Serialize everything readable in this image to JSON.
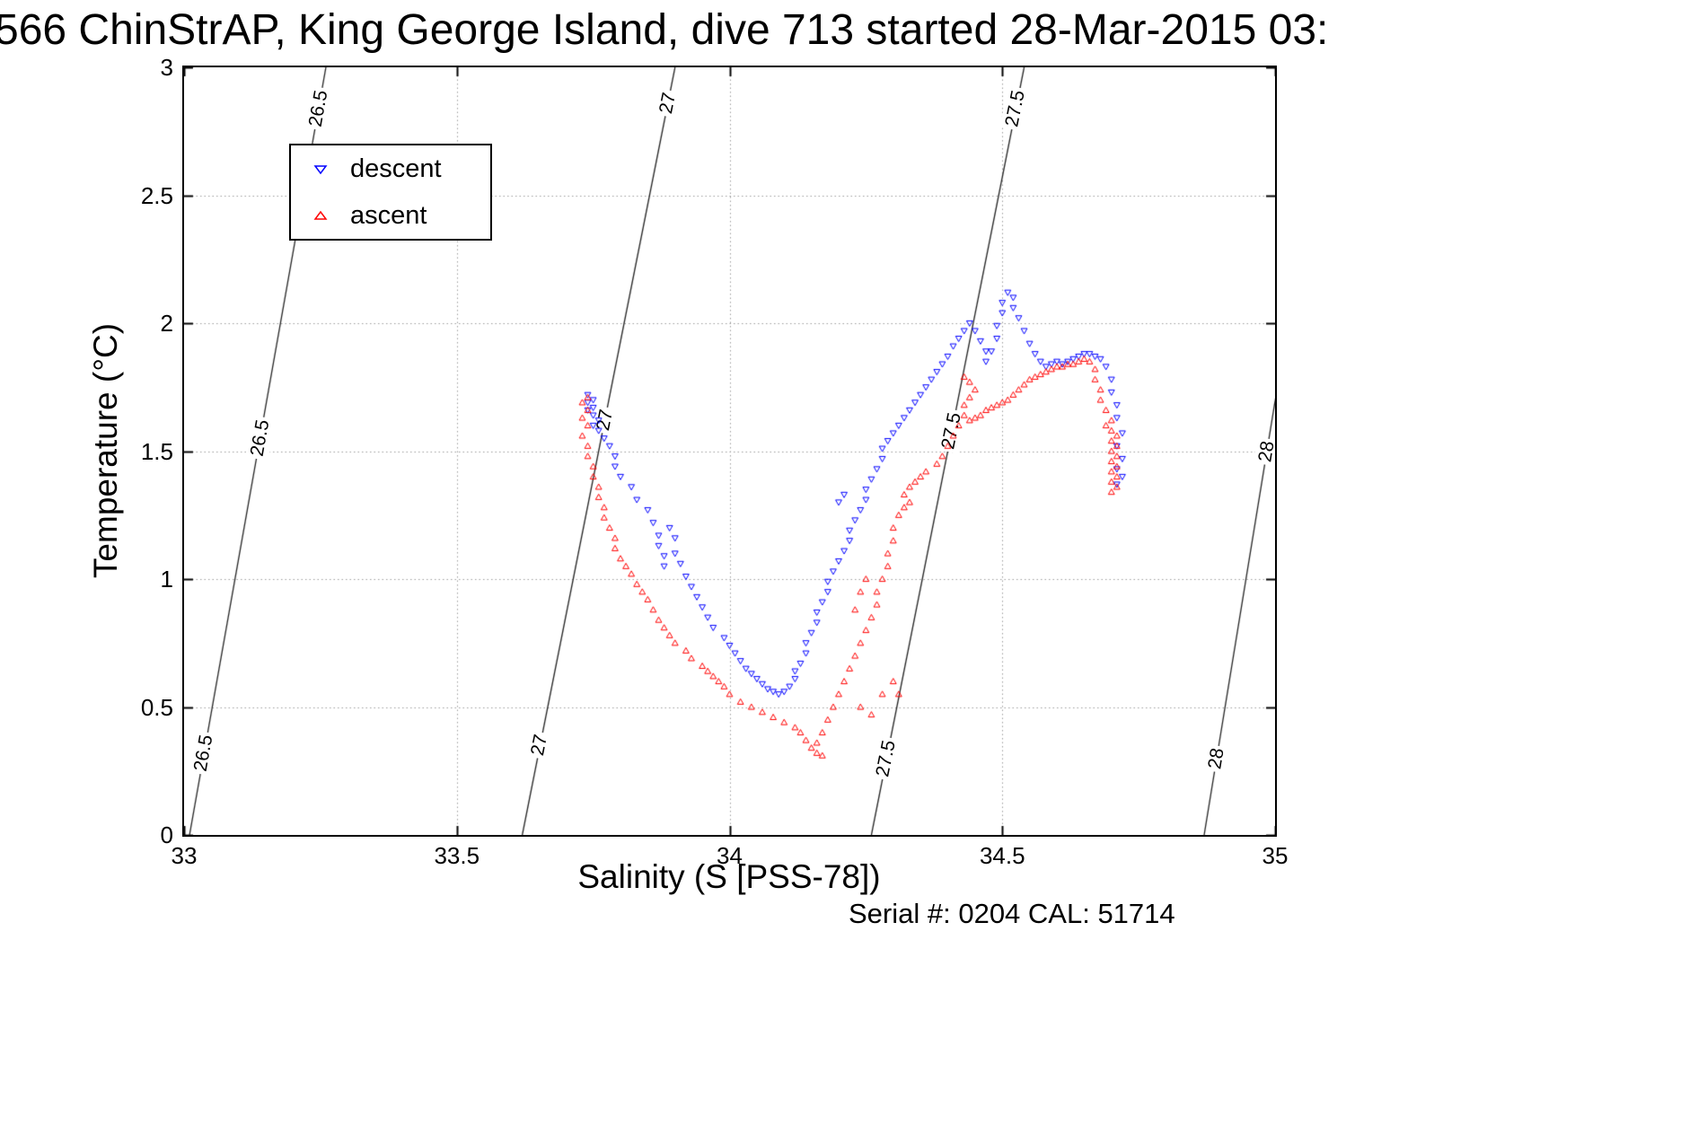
{
  "title": "566 ChinStrAP, King George Island, dive 713 started 28-Mar-2015 03:",
  "footer": {
    "serial_text": "Serial #: 0204  CAL: 51714"
  },
  "chart_data": {
    "type": "scatter",
    "title": "566 ChinStrAP, King George Island, dive 713 started 28-Mar-2015 03:",
    "xlabel": "Salinity (S [PSS-78])",
    "ylabel": "Temperature (°C)",
    "xlim": [
      33,
      35
    ],
    "ylim": [
      0,
      3
    ],
    "x_ticks": [
      33,
      33.5,
      34,
      34.5,
      35
    ],
    "x_tick_labels": [
      "33",
      "33.5",
      "34",
      "34.5",
      "35"
    ],
    "y_ticks": [
      0,
      0.5,
      1,
      1.5,
      2,
      2.5,
      3
    ],
    "y_tick_labels": [
      "0",
      "0.5",
      "1",
      "1.5",
      "2",
      "2.5",
      "3"
    ],
    "grid": true,
    "grid_style": "dotted",
    "legend": {
      "position": "upper-left-inside",
      "entries": [
        {
          "label": "descent",
          "color": "#0000ff",
          "marker": "triangle-down"
        },
        {
          "label": "ascent",
          "color": "#ff0000",
          "marker": "triangle-up"
        }
      ]
    },
    "isopycnals": [
      {
        "label": "26.5",
        "s_at_t0": 33.01,
        "s_at_t3": 33.26,
        "label_t": [
          0.32,
          1.55,
          2.84
        ]
      },
      {
        "label": "27",
        "s_at_t0": 33.62,
        "s_at_t3": 33.9,
        "label_t": [
          0.35,
          1.62,
          2.86
        ]
      },
      {
        "label": "27.5",
        "s_at_t0": 34.26,
        "s_at_t3": 34.54,
        "label_t": [
          0.3,
          1.58,
          2.84
        ]
      },
      {
        "label": "28",
        "s_at_t0": 34.87,
        "s_at_t3": 35.1,
        "label_t": [
          0.3,
          1.5
        ]
      }
    ],
    "series": [
      {
        "name": "descent",
        "marker": "triangle-down",
        "color": "#0000ff",
        "points": [
          [
            33.74,
            1.72
          ],
          [
            33.75,
            1.7
          ],
          [
            33.74,
            1.69
          ],
          [
            33.75,
            1.67
          ],
          [
            33.74,
            1.66
          ],
          [
            33.75,
            1.64
          ],
          [
            33.76,
            1.62
          ],
          [
            33.75,
            1.6
          ],
          [
            33.76,
            1.58
          ],
          [
            33.77,
            1.55
          ],
          [
            33.78,
            1.52
          ],
          [
            33.79,
            1.48
          ],
          [
            33.79,
            1.44
          ],
          [
            33.8,
            1.4
          ],
          [
            33.82,
            1.36
          ],
          [
            33.83,
            1.31
          ],
          [
            33.85,
            1.27
          ],
          [
            33.86,
            1.22
          ],
          [
            33.87,
            1.17
          ],
          [
            33.87,
            1.13
          ],
          [
            33.88,
            1.09
          ],
          [
            33.89,
            1.2
          ],
          [
            33.9,
            1.16
          ],
          [
            33.88,
            1.05
          ],
          [
            33.9,
            1.1
          ],
          [
            33.91,
            1.06
          ],
          [
            33.92,
            1.01
          ],
          [
            33.93,
            0.97
          ],
          [
            33.94,
            0.93
          ],
          [
            33.95,
            0.89
          ],
          [
            33.96,
            0.85
          ],
          [
            33.97,
            0.81
          ],
          [
            33.99,
            0.77
          ],
          [
            34.0,
            0.74
          ],
          [
            34.01,
            0.71
          ],
          [
            34.02,
            0.68
          ],
          [
            34.03,
            0.65
          ],
          [
            34.04,
            0.63
          ],
          [
            34.05,
            0.61
          ],
          [
            34.06,
            0.59
          ],
          [
            34.07,
            0.57
          ],
          [
            34.08,
            0.56
          ],
          [
            34.09,
            0.55
          ],
          [
            34.1,
            0.56
          ],
          [
            34.11,
            0.58
          ],
          [
            34.12,
            0.61
          ],
          [
            34.12,
            0.64
          ],
          [
            34.13,
            0.67
          ],
          [
            34.14,
            0.71
          ],
          [
            34.14,
            0.75
          ],
          [
            34.15,
            0.79
          ],
          [
            34.16,
            0.83
          ],
          [
            34.16,
            0.87
          ],
          [
            34.17,
            0.91
          ],
          [
            34.18,
            0.95
          ],
          [
            34.18,
            0.99
          ],
          [
            34.19,
            1.03
          ],
          [
            34.2,
            1.07
          ],
          [
            34.2,
            1.3
          ],
          [
            34.21,
            1.11
          ],
          [
            34.21,
            1.33
          ],
          [
            34.22,
            1.15
          ],
          [
            34.22,
            1.19
          ],
          [
            34.23,
            1.23
          ],
          [
            34.24,
            1.27
          ],
          [
            34.25,
            1.31
          ],
          [
            34.25,
            1.35
          ],
          [
            34.26,
            1.39
          ],
          [
            34.27,
            1.43
          ],
          [
            34.28,
            1.47
          ],
          [
            34.28,
            1.51
          ],
          [
            34.29,
            1.54
          ],
          [
            34.3,
            1.57
          ],
          [
            34.31,
            1.6
          ],
          [
            34.32,
            1.63
          ],
          [
            34.33,
            1.66
          ],
          [
            34.34,
            1.69
          ],
          [
            34.35,
            1.72
          ],
          [
            34.36,
            1.75
          ],
          [
            34.37,
            1.78
          ],
          [
            34.38,
            1.81
          ],
          [
            34.39,
            1.84
          ],
          [
            34.4,
            1.87
          ],
          [
            34.41,
            1.91
          ],
          [
            34.42,
            1.94
          ],
          [
            34.43,
            1.97
          ],
          [
            34.44,
            2.0
          ],
          [
            34.45,
            1.97
          ],
          [
            34.46,
            1.93
          ],
          [
            34.47,
            1.89
          ],
          [
            34.47,
            1.85
          ],
          [
            34.48,
            1.89
          ],
          [
            34.49,
            1.94
          ],
          [
            34.49,
            1.99
          ],
          [
            34.5,
            2.04
          ],
          [
            34.5,
            2.08
          ],
          [
            34.51,
            2.12
          ],
          [
            34.52,
            2.1
          ],
          [
            34.52,
            2.06
          ],
          [
            34.53,
            2.02
          ],
          [
            34.54,
            1.97
          ],
          [
            34.55,
            1.92
          ],
          [
            34.56,
            1.88
          ],
          [
            34.57,
            1.85
          ],
          [
            34.58,
            1.83
          ],
          [
            34.59,
            1.84
          ],
          [
            34.6,
            1.85
          ],
          [
            34.61,
            1.84
          ],
          [
            34.62,
            1.85
          ],
          [
            34.63,
            1.86
          ],
          [
            34.64,
            1.87
          ],
          [
            34.65,
            1.88
          ],
          [
            34.66,
            1.88
          ],
          [
            34.67,
            1.87
          ],
          [
            34.68,
            1.86
          ],
          [
            34.69,
            1.83
          ],
          [
            34.7,
            1.78
          ],
          [
            34.7,
            1.73
          ],
          [
            34.71,
            1.68
          ],
          [
            34.71,
            1.63
          ],
          [
            34.72,
            1.57
          ],
          [
            34.71,
            1.52
          ],
          [
            34.72,
            1.47
          ],
          [
            34.71,
            1.43
          ],
          [
            34.72,
            1.4
          ],
          [
            34.71,
            1.37
          ]
        ]
      },
      {
        "name": "ascent",
        "marker": "triangle-up",
        "color": "#ff0000",
        "points": [
          [
            34.7,
            1.34
          ],
          [
            34.71,
            1.36
          ],
          [
            34.7,
            1.38
          ],
          [
            34.71,
            1.4
          ],
          [
            34.7,
            1.42
          ],
          [
            34.71,
            1.44
          ],
          [
            34.7,
            1.46
          ],
          [
            34.71,
            1.48
          ],
          [
            34.7,
            1.5
          ],
          [
            34.71,
            1.52
          ],
          [
            34.7,
            1.54
          ],
          [
            34.71,
            1.56
          ],
          [
            34.7,
            1.58
          ],
          [
            34.69,
            1.6
          ],
          [
            34.7,
            1.62
          ],
          [
            34.69,
            1.66
          ],
          [
            34.68,
            1.7
          ],
          [
            34.68,
            1.74
          ],
          [
            34.67,
            1.78
          ],
          [
            34.67,
            1.82
          ],
          [
            34.66,
            1.85
          ],
          [
            34.65,
            1.86
          ],
          [
            34.64,
            1.85
          ],
          [
            34.63,
            1.84
          ],
          [
            34.62,
            1.84
          ],
          [
            34.61,
            1.83
          ],
          [
            34.6,
            1.83
          ],
          [
            34.59,
            1.82
          ],
          [
            34.58,
            1.81
          ],
          [
            34.57,
            1.8
          ],
          [
            34.56,
            1.79
          ],
          [
            34.55,
            1.78
          ],
          [
            34.54,
            1.76
          ],
          [
            34.53,
            1.74
          ],
          [
            34.52,
            1.72
          ],
          [
            34.51,
            1.7
          ],
          [
            34.5,
            1.69
          ],
          [
            34.49,
            1.68
          ],
          [
            34.48,
            1.67
          ],
          [
            34.47,
            1.66
          ],
          [
            34.46,
            1.64
          ],
          [
            34.45,
            1.63
          ],
          [
            34.44,
            1.62
          ],
          [
            34.43,
            1.64
          ],
          [
            34.43,
            1.68
          ],
          [
            34.44,
            1.71
          ],
          [
            34.45,
            1.74
          ],
          [
            34.44,
            1.77
          ],
          [
            34.43,
            1.79
          ],
          [
            34.42,
            1.6
          ],
          [
            34.41,
            1.56
          ],
          [
            34.4,
            1.52
          ],
          [
            34.39,
            1.48
          ],
          [
            34.38,
            1.45
          ],
          [
            34.36,
            1.42
          ],
          [
            34.35,
            1.4
          ],
          [
            34.34,
            1.38
          ],
          [
            34.33,
            1.36
          ],
          [
            34.32,
            1.33
          ],
          [
            34.33,
            1.3
          ],
          [
            34.32,
            1.28
          ],
          [
            34.31,
            1.25
          ],
          [
            34.3,
            1.2
          ],
          [
            34.3,
            1.15
          ],
          [
            34.29,
            1.1
          ],
          [
            34.29,
            1.05
          ],
          [
            34.28,
            1.0
          ],
          [
            34.27,
            0.95
          ],
          [
            34.24,
            0.95
          ],
          [
            34.25,
            1.0
          ],
          [
            34.23,
            0.88
          ],
          [
            34.27,
            0.9
          ],
          [
            34.26,
            0.85
          ],
          [
            34.25,
            0.8
          ],
          [
            34.24,
            0.75
          ],
          [
            34.23,
            0.7
          ],
          [
            34.22,
            0.65
          ],
          [
            34.21,
            0.6
          ],
          [
            34.2,
            0.55
          ],
          [
            34.19,
            0.5
          ],
          [
            34.18,
            0.45
          ],
          [
            34.17,
            0.4
          ],
          [
            34.16,
            0.36
          ],
          [
            34.16,
            0.32
          ],
          [
            34.17,
            0.31
          ],
          [
            34.24,
            0.5
          ],
          [
            34.26,
            0.47
          ],
          [
            34.28,
            0.55
          ],
          [
            34.3,
            0.6
          ],
          [
            34.31,
            0.55
          ],
          [
            34.15,
            0.34
          ],
          [
            34.14,
            0.37
          ],
          [
            34.13,
            0.4
          ],
          [
            34.12,
            0.42
          ],
          [
            34.1,
            0.44
          ],
          [
            34.08,
            0.46
          ],
          [
            34.06,
            0.48
          ],
          [
            34.04,
            0.5
          ],
          [
            34.02,
            0.52
          ],
          [
            34.0,
            0.55
          ],
          [
            33.99,
            0.58
          ],
          [
            33.98,
            0.6
          ],
          [
            33.97,
            0.62
          ],
          [
            33.96,
            0.64
          ],
          [
            33.95,
            0.66
          ],
          [
            33.93,
            0.69
          ],
          [
            33.92,
            0.72
          ],
          [
            33.9,
            0.75
          ],
          [
            33.89,
            0.78
          ],
          [
            33.88,
            0.81
          ],
          [
            33.87,
            0.84
          ],
          [
            33.86,
            0.88
          ],
          [
            33.85,
            0.92
          ],
          [
            33.84,
            0.95
          ],
          [
            33.83,
            0.98
          ],
          [
            33.82,
            1.02
          ],
          [
            33.81,
            1.05
          ],
          [
            33.8,
            1.08
          ],
          [
            33.79,
            1.12
          ],
          [
            33.79,
            1.16
          ],
          [
            33.78,
            1.2
          ],
          [
            33.77,
            1.24
          ],
          [
            33.77,
            1.28
          ],
          [
            33.76,
            1.32
          ],
          [
            33.76,
            1.36
          ],
          [
            33.75,
            1.4
          ],
          [
            33.75,
            1.44
          ],
          [
            33.74,
            1.48
          ],
          [
            33.74,
            1.52
          ],
          [
            33.73,
            1.56
          ],
          [
            33.74,
            1.6
          ],
          [
            33.73,
            1.63
          ],
          [
            33.74,
            1.66
          ],
          [
            33.73,
            1.69
          ],
          [
            33.74,
            1.71
          ]
        ]
      }
    ]
  }
}
